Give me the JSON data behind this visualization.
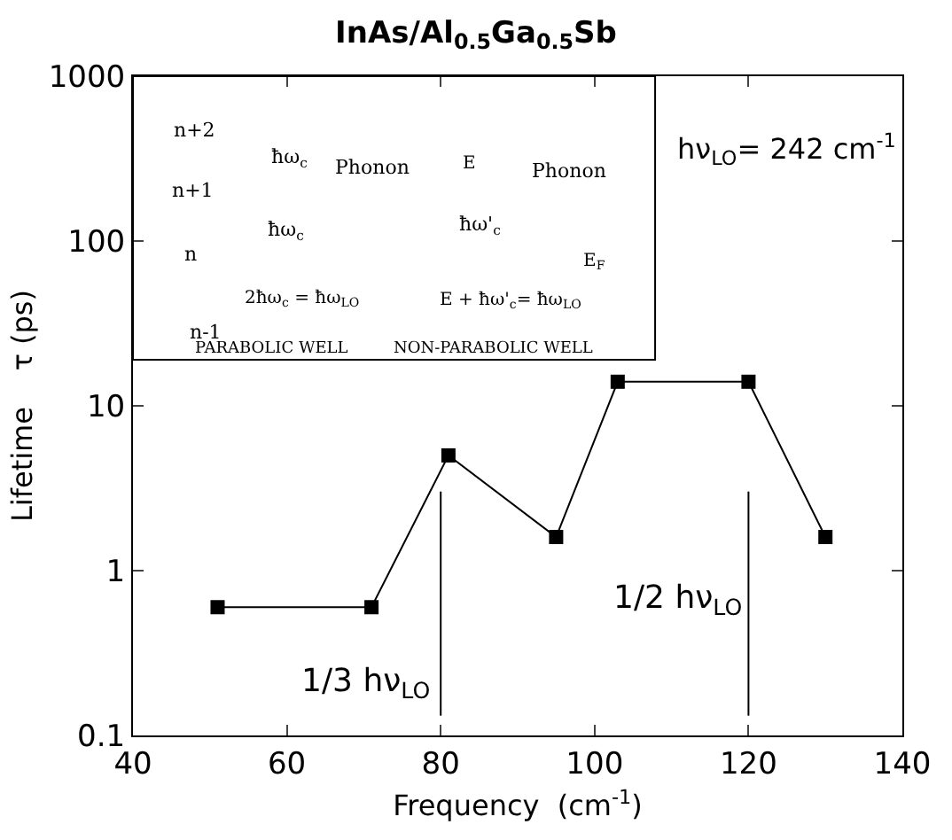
{
  "chart_data": {
    "type": "line",
    "title": "InAs/Al$_{0.5}$Ga$_{0.5}$Sb",
    "xlabel": "Frequency  (cm$^{-1}$)",
    "ylabel": "Lifetime    τ (ps)",
    "x": [
      51,
      71,
      81,
      95,
      103,
      120,
      130
    ],
    "series": [
      {
        "color": "#000000",
        "values": [
          0.6,
          0.6,
          5,
          1.6,
          14,
          14,
          1.6
        ]
      }
    ],
    "log": "y",
    "xlim": [
      40,
      140
    ],
    "xticks": [
      40,
      60,
      80,
      100,
      120,
      140
    ],
    "ylim": [
      0.1,
      1000
    ],
    "yticks": [
      0.1,
      1,
      10,
      100,
      1000
    ],
    "marker": "square",
    "line_style": "solid",
    "ref_lines": [
      {
        "axis": "x",
        "value": 80,
        "label": "1/3 hν$_{LO}$",
        "color": "#000000"
      },
      {
        "axis": "x",
        "value": 120,
        "label": "1/2 hν$_{LO}$",
        "color": "#000000"
      }
    ],
    "annotations": [
      "hν$_{LO}$= 242 cm$^{-1}$",
      "n+2",
      "n+1",
      "n",
      "n-1",
      "ħω$_{c}$",
      "ħω$_{c}$",
      "Phonon",
      "Phonon",
      "E",
      "ħω'$_{c}$",
      "E$_{F}$",
      "2ħω$_{c}$ = ħω$_{LO}$",
      "E + ħω'$_{c}$= ħω$_{LO}$",
      "PARABOLIC WELL",
      "NON-PARABOLIC WELL"
    ]
  }
}
